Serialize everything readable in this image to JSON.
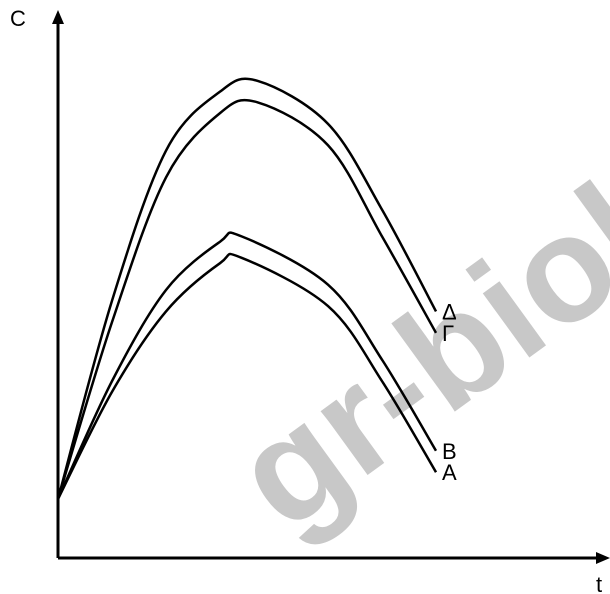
{
  "watermark": "gr-biolo",
  "chart_data": {
    "type": "line",
    "title": "",
    "xlabel": "t",
    "ylabel": "C",
    "xlim": [
      0,
      10
    ],
    "ylim": [
      0,
      10
    ],
    "grid": false,
    "legend": "none (labels at line ends)",
    "series": [
      {
        "name": "Δ",
        "x": [
          0,
          1,
          2,
          3,
          3.7,
          5,
          6,
          7
        ],
        "y": [
          1.1,
          4.8,
          7.6,
          8.7,
          8.9,
          8.1,
          6.5,
          4.6
        ]
      },
      {
        "name": "Γ",
        "x": [
          0,
          1,
          2,
          3,
          3.7,
          5,
          6,
          7
        ],
        "y": [
          1.1,
          4.4,
          7.1,
          8.3,
          8.5,
          7.7,
          6.0,
          4.2
        ]
      },
      {
        "name": "B",
        "x": [
          0,
          1,
          2,
          3,
          3.4,
          5,
          6,
          7
        ],
        "y": [
          1.1,
          3.3,
          5.0,
          5.9,
          6.0,
          5.1,
          3.7,
          2.0
        ]
      },
      {
        "name": "A",
        "x": [
          0,
          1,
          2,
          3,
          3.4,
          5,
          6,
          7
        ],
        "y": [
          1.1,
          3.1,
          4.6,
          5.5,
          5.6,
          4.7,
          3.3,
          1.6
        ]
      }
    ],
    "colors": {
      "line": "#000000",
      "watermark": "#c8c8c8"
    }
  }
}
